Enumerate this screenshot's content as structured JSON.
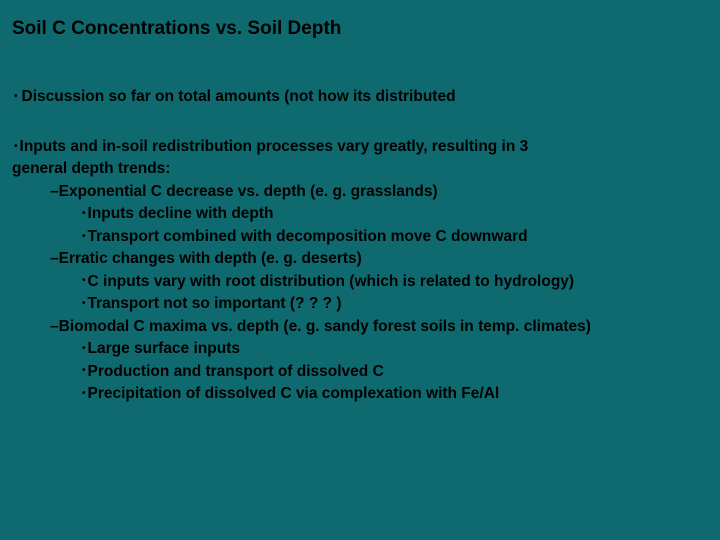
{
  "background_color": "#0f6a6f",
  "text_color": "#000000",
  "font_family": "Arial",
  "title": "Soil C Concentrations vs. Soil Depth",
  "title_fontsize": 19,
  "body_fontsize": 15.5,
  "b1": "Discussion so far on total amounts (not how its distributed",
  "b2a": "Inputs and in-soil redistribution processes vary greatly, resulting in 3",
  "b2b": "general depth trends:",
  "d1": "–Exponential C decrease vs. depth (e. g. grasslands)",
  "d1s1": "Inputs decline with depth",
  "d1s2": "Transport combined with decomposition move C downward",
  "d2": "–Erratic changes with depth (e. g. deserts)",
  "d2s1": "C inputs vary with root distribution (which is related to hydrology)",
  "d2s2": "Transport not so important (? ? ? )",
  "d3": "–Biomodal C maxima vs. depth (e. g. sandy forest soils in temp. climates)",
  "d3s1": "Large surface inputs",
  "d3s2": "Production and transport of dissolved C",
  "d3s3": "Precipitation of dissolved C via complexation with Fe/Al"
}
